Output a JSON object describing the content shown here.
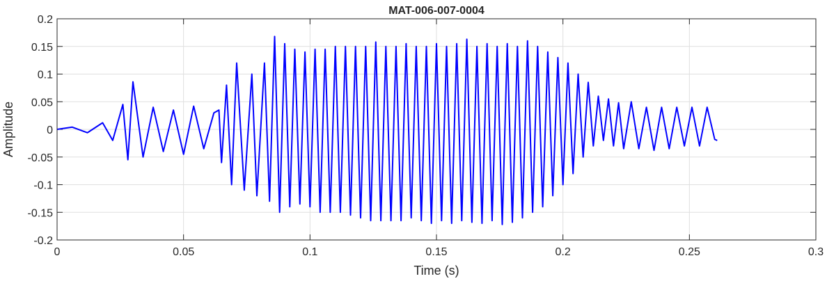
{
  "chart_data": {
    "type": "line",
    "title": "MAT-006-007-0004",
    "xlabel": "Time (s)",
    "ylabel": "Amplitude",
    "xlim": [
      0,
      0.3
    ],
    "ylim": [
      -0.2,
      0.2
    ],
    "grid": true,
    "xticks": [
      0,
      0.05,
      0.1,
      0.15,
      0.2,
      0.25,
      0.3
    ],
    "xtick_labels": [
      "0",
      "0.05",
      "0.1",
      "0.15",
      "0.2",
      "0.25",
      "0.3"
    ],
    "yticks": [
      0.2,
      0.15,
      0.1,
      0.05,
      0,
      -0.05,
      -0.1,
      -0.15,
      -0.2
    ],
    "ytick_labels": [
      "0.2",
      "0.15",
      "0.1",
      "0.05",
      "0",
      "-0.05",
      "-0.1",
      "-0.15",
      "-0.2"
    ],
    "series": [
      {
        "color": "#0000ff",
        "x": [
          0.0,
          0.006,
          0.012,
          0.018,
          0.022,
          0.026,
          0.028,
          0.03,
          0.034,
          0.038,
          0.042,
          0.046,
          0.05,
          0.054,
          0.058,
          0.062,
          0.064,
          0.065,
          0.067,
          0.069,
          0.071,
          0.074,
          0.077,
          0.079,
          0.082,
          0.084,
          0.086,
          0.088,
          0.09,
          0.092,
          0.094,
          0.096,
          0.098,
          0.1,
          0.102,
          0.104,
          0.106,
          0.108,
          0.11,
          0.112,
          0.114,
          0.116,
          0.118,
          0.12,
          0.122,
          0.124,
          0.126,
          0.128,
          0.13,
          0.132,
          0.134,
          0.136,
          0.138,
          0.14,
          0.142,
          0.144,
          0.146,
          0.148,
          0.15,
          0.152,
          0.154,
          0.156,
          0.158,
          0.16,
          0.162,
          0.164,
          0.166,
          0.168,
          0.17,
          0.172,
          0.174,
          0.176,
          0.178,
          0.18,
          0.182,
          0.184,
          0.186,
          0.188,
          0.19,
          0.192,
          0.194,
          0.196,
          0.198,
          0.2,
          0.202,
          0.204,
          0.206,
          0.208,
          0.21,
          0.212,
          0.214,
          0.216,
          0.218,
          0.22,
          0.222,
          0.224,
          0.227,
          0.23,
          0.233,
          0.236,
          0.239,
          0.242,
          0.245,
          0.248,
          0.251,
          0.254,
          0.257,
          0.26,
          0.261
        ],
        "y": [
          0.0,
          0.004,
          -0.006,
          0.012,
          -0.02,
          0.045,
          -0.055,
          0.086,
          -0.05,
          0.04,
          -0.04,
          0.035,
          -0.045,
          0.042,
          -0.035,
          0.03,
          0.035,
          -0.06,
          0.08,
          -0.1,
          0.12,
          -0.11,
          0.1,
          -0.12,
          0.12,
          -0.13,
          0.168,
          -0.15,
          0.155,
          -0.14,
          0.145,
          -0.135,
          0.14,
          -0.14,
          0.145,
          -0.15,
          0.145,
          -0.15,
          0.15,
          -0.15,
          0.15,
          -0.155,
          0.15,
          -0.16,
          0.15,
          -0.165,
          0.158,
          -0.165,
          0.15,
          -0.165,
          0.15,
          -0.165,
          0.155,
          -0.16,
          0.15,
          -0.165,
          0.15,
          -0.17,
          0.155,
          -0.165,
          0.15,
          -0.17,
          0.155,
          -0.165,
          0.163,
          -0.168,
          0.15,
          -0.17,
          0.155,
          -0.165,
          0.15,
          -0.172,
          0.155,
          -0.168,
          0.15,
          -0.16,
          0.16,
          -0.15,
          0.15,
          -0.14,
          0.14,
          -0.12,
          0.13,
          -0.1,
          0.12,
          -0.08,
          0.1,
          -0.05,
          0.085,
          -0.03,
          0.06,
          -0.02,
          0.055,
          -0.03,
          0.048,
          -0.035,
          0.05,
          -0.035,
          0.04,
          -0.038,
          0.04,
          -0.035,
          0.04,
          -0.03,
          0.04,
          -0.03,
          0.04,
          -0.018,
          -0.02
        ]
      }
    ]
  }
}
